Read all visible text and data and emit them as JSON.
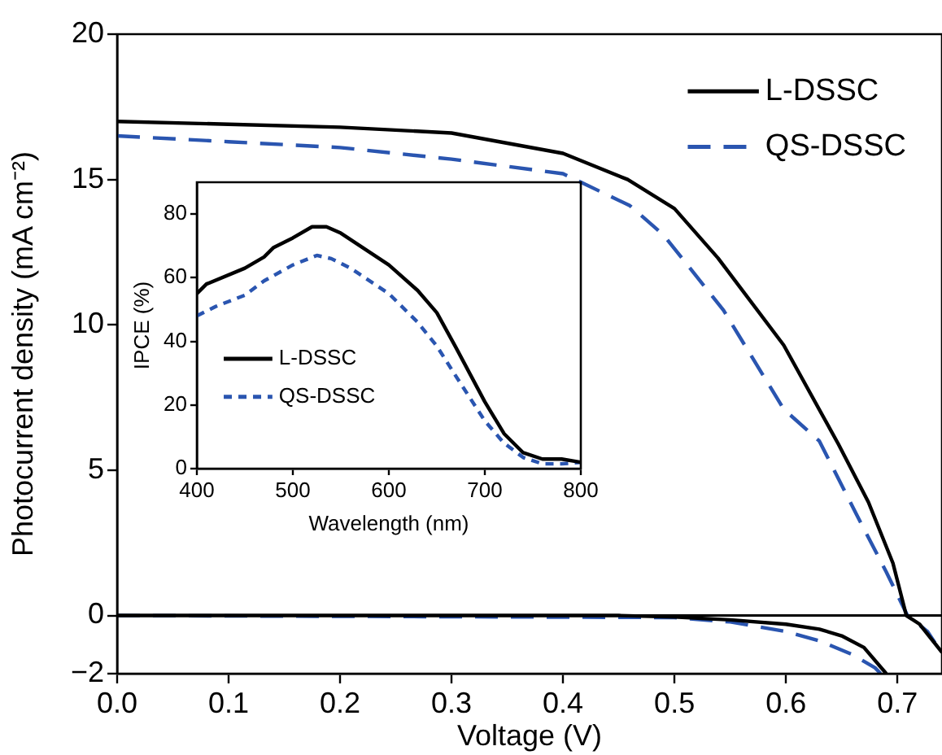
{
  "chart_data": [
    {
      "type": "line",
      "xlabel": "Voltage (V)",
      "ylabel": "Photocurrent density (mA cm⁻²)",
      "xlim": [
        0,
        0.74
      ],
      "ylim": [
        -2,
        20
      ],
      "xticks": [
        {
          "value": 0,
          "label": "0.0"
        },
        {
          "value": 0.1,
          "label": "0.1"
        },
        {
          "value": 0.2,
          "label": "0.2"
        },
        {
          "value": 0.3,
          "label": "0.3"
        },
        {
          "value": 0.4,
          "label": "0.4"
        },
        {
          "value": 0.5,
          "label": "0.5"
        },
        {
          "value": 0.6,
          "label": "0.6"
        },
        {
          "value": 0.7,
          "label": "0.7"
        }
      ],
      "yticks": [
        {
          "value": -2,
          "label": "−2"
        },
        0,
        5,
        10,
        15,
        20
      ],
      "legend": "top right",
      "grid": false,
      "marker": "none",
      "ref_lines": [
        {
          "axis": "y",
          "value": 0,
          "color": "#000000"
        }
      ],
      "series": [
        {
          "name": "L-DSSC",
          "color": "#000000",
          "line_style": "solid",
          "x": [
            0,
            0.1,
            0.2,
            0.3,
            0.4,
            0.458,
            0.5,
            0.539,
            0.598,
            0.647,
            0.674,
            0.696,
            0.708,
            0.72,
            0.74
          ],
          "values": [
            17.0,
            16.9,
            16.8,
            16.6,
            15.9,
            15.0,
            14.0,
            12.3,
            9.3,
            5.9,
            3.9,
            1.8,
            0,
            -0.3,
            -1.27
          ]
        },
        {
          "name": "QS-DSSC",
          "color": "#2a55b0",
          "line_style": "dashed",
          "x": [
            0,
            0.1,
            0.2,
            0.3,
            0.4,
            0.46,
            0.49,
            0.544,
            0.598,
            0.63,
            0.663,
            0.69,
            0.709,
            0.727,
            0.74
          ],
          "values": [
            16.5,
            16.3,
            16.1,
            15.7,
            15.2,
            14.1,
            13.1,
            10.5,
            7.1,
            6.0,
            3.5,
            1.5,
            0,
            -0.55,
            -1.3
          ]
        },
        {
          "color": "#000000",
          "line_style": "solid",
          "x": [
            0,
            0.45,
            0.5,
            0.55,
            0.6,
            0.63,
            0.65,
            0.67,
            0.69
          ],
          "values": [
            0,
            0,
            -0.05,
            -0.15,
            -0.3,
            -0.47,
            -0.7,
            -1.1,
            -2
          ]
        },
        {
          "color": "#2a55b0",
          "line_style": "dashed",
          "x": [
            0,
            0.5,
            0.55,
            0.6,
            0.63,
            0.66,
            0.68,
            0.685
          ],
          "values": [
            0,
            -0.07,
            -0.22,
            -0.55,
            -0.87,
            -1.35,
            -1.8,
            -2
          ]
        }
      ]
    },
    {
      "type": "line",
      "xlabel": "Wavelength (nm)",
      "ylabel": "IPCE (%)",
      "xlim": [
        400,
        800
      ],
      "ylim": [
        0,
        90
      ],
      "xticks": [
        400,
        500,
        600,
        700,
        800
      ],
      "yticks": [
        0,
        20,
        40,
        60,
        80
      ],
      "legend": "left",
      "grid": false,
      "marker": "none",
      "series": [
        {
          "name": "L-DSSC",
          "color": "#000000",
          "line_style": "solid",
          "x": [
            400,
            410,
            450,
            470,
            480,
            500,
            520,
            535,
            550,
            600,
            630,
            650,
            670,
            700,
            720,
            740,
            760,
            780,
            800
          ],
          "values": [
            55,
            58,
            63,
            66.5,
            69.5,
            72.5,
            76,
            76,
            74,
            64,
            56,
            49,
            38,
            21,
            11,
            5,
            3,
            3,
            2
          ]
        },
        {
          "name": "QS-DSSC",
          "color": "#2a55b0",
          "line_style": "dotted",
          "x": [
            400,
            420,
            450,
            470,
            500,
            525,
            540,
            560,
            600,
            630,
            650,
            670,
            700,
            720,
            740,
            760,
            780,
            800
          ],
          "values": [
            48,
            51,
            54.5,
            59,
            64,
            67,
            66,
            63,
            55,
            46,
            38.5,
            29,
            15,
            8,
            3.5,
            1.5,
            1.5,
            2
          ]
        }
      ]
    }
  ]
}
